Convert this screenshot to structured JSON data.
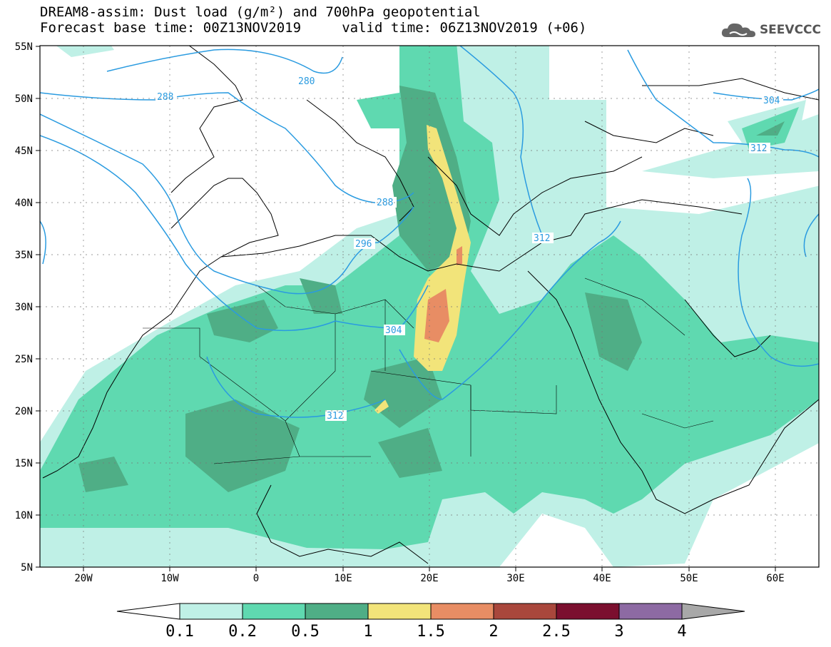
{
  "title": {
    "line1": "DREAM8-assim: Dust load (g/m²) and 700hPa geopotential",
    "line2": "Forecast base time: 00Z13NOV2019     valid time: 06Z13NOV2019 (+06)"
  },
  "logo": {
    "text": "SEEVCCC",
    "icon": "cloud-icon"
  },
  "map": {
    "lon_range": [
      -25,
      65
    ],
    "lat_range": [
      5,
      55
    ],
    "lon_ticks": [
      "20W",
      "10W",
      "0",
      "10E",
      "20E",
      "30E",
      "40E",
      "50E",
      "60E"
    ],
    "lat_ticks": [
      "5N",
      "10N",
      "15N",
      "20N",
      "25N",
      "30N",
      "35N",
      "40N",
      "45N",
      "50N",
      "55N"
    ],
    "contour_labels": [
      "280",
      "288",
      "288",
      "296",
      "304",
      "312",
      "312",
      "304",
      "312"
    ],
    "contour_color": "#2a9be0"
  },
  "colorbar": {
    "levels": [
      "0.1",
      "0.2",
      "0.5",
      "1",
      "1.5",
      "2",
      "2.5",
      "3",
      "4"
    ],
    "colors": [
      "#ffffff",
      "#bff0e6",
      "#5fd9b0",
      "#4fae86",
      "#f2e47a",
      "#e88d64",
      "#a9473c",
      "#7b0f2f",
      "#8d6aa3",
      "#a8a8a8"
    ]
  }
}
